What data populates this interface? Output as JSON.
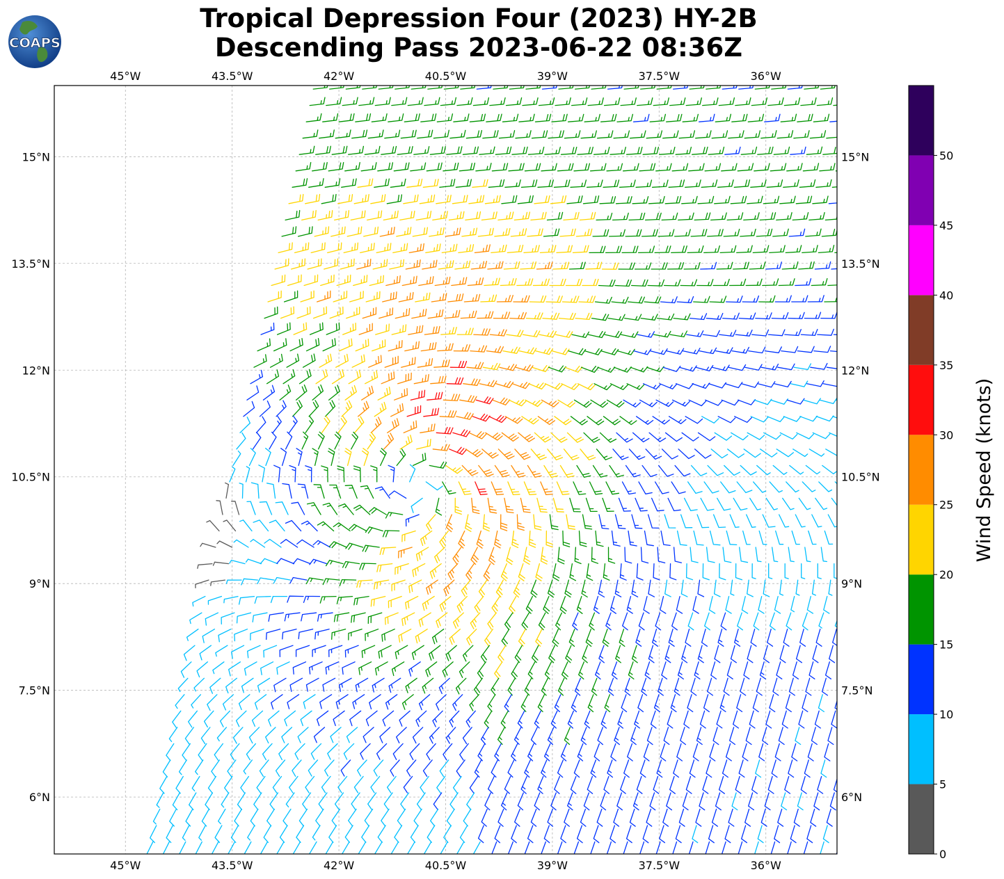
{
  "title": {
    "line1": "Tropical Depression Four (2023) HY-2B",
    "line2": "Descending Pass 2023-06-22 08:36Z"
  },
  "logo": {
    "text": "COAPS",
    "icon": "globe-logo-icon"
  },
  "map": {
    "lon_range": [
      -46.0,
      -35.0
    ],
    "lat_range": [
      5.2,
      16.0
    ],
    "grid": true,
    "lon_ticks": [
      {
        "value": -45.0,
        "label": "45°W"
      },
      {
        "value": -43.5,
        "label": "43.5°W"
      },
      {
        "value": -42.0,
        "label": "42°W"
      },
      {
        "value": -40.5,
        "label": "40.5°W"
      },
      {
        "value": -39.0,
        "label": "39°W"
      },
      {
        "value": -37.5,
        "label": "37.5°W"
      },
      {
        "value": -36.0,
        "label": "36°W"
      }
    ],
    "lat_ticks": [
      {
        "value": 15.0,
        "label": "15°N"
      },
      {
        "value": 13.5,
        "label": "13.5°N"
      },
      {
        "value": 12.0,
        "label": "12°N"
      },
      {
        "value": 10.5,
        "label": "10.5°N"
      },
      {
        "value": 9.0,
        "label": "9°N"
      },
      {
        "value": 7.5,
        "label": "7.5°N"
      },
      {
        "value": 6.0,
        "label": "6°N"
      }
    ],
    "storm_center": {
      "lon": -40.8,
      "lat": 10.4
    },
    "swath_west_edge": [
      {
        "lat": 16.0,
        "lon": -42.4
      },
      {
        "lat": 5.2,
        "lon": -44.7
      }
    ]
  },
  "colorbar": {
    "title": "Wind Speed (knots)",
    "bins": [
      {
        "min": 0,
        "max": 5,
        "color": "#595959"
      },
      {
        "min": 5,
        "max": 10,
        "color": "#00bfff"
      },
      {
        "min": 10,
        "max": 15,
        "color": "#0033ff"
      },
      {
        "min": 15,
        "max": 20,
        "color": "#009400"
      },
      {
        "min": 20,
        "max": 25,
        "color": "#ffd500"
      },
      {
        "min": 25,
        "max": 30,
        "color": "#ff8c00"
      },
      {
        "min": 30,
        "max": 35,
        "color": "#ff0d0d"
      },
      {
        "min": 35,
        "max": 40,
        "color": "#803c27"
      },
      {
        "min": 40,
        "max": 45,
        "color": "#ff00ff"
      },
      {
        "min": 45,
        "max": 50,
        "color": "#8000b2"
      },
      {
        "min": 50,
        "max": 55,
        "color": "#2e005c"
      }
    ],
    "ticks": [
      "0",
      "5",
      "10",
      "15",
      "20",
      "25",
      "30",
      "35",
      "40",
      "45",
      "50"
    ]
  }
}
